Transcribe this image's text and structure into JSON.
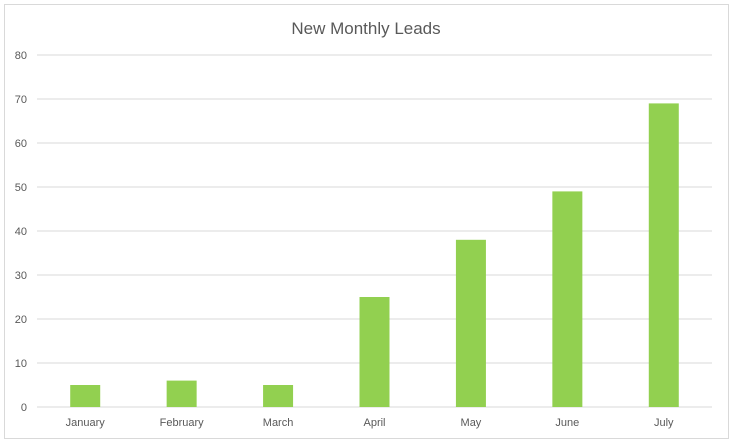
{
  "chart_data": {
    "type": "bar",
    "title": "New Monthly Leads",
    "xlabel": "",
    "ylabel": "",
    "categories": [
      "January",
      "February",
      "March",
      "April",
      "May",
      "June",
      "July"
    ],
    "values": [
      5,
      6,
      5,
      25,
      38,
      49,
      69
    ],
    "ylim": [
      0,
      80
    ],
    "yticks": [
      "0",
      "10",
      "20",
      "30",
      "40",
      "50",
      "60",
      "70",
      "80"
    ],
    "grid": true,
    "legend": "none",
    "bar_color": "#92d050",
    "grid_color": "#d9d9d9",
    "text_color": "#595959"
  }
}
